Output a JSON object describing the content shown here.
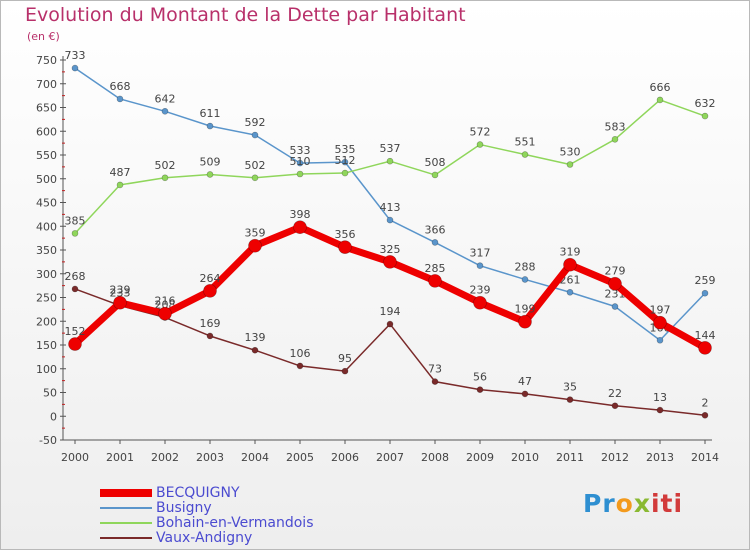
{
  "chart_data": {
    "type": "line",
    "title": "Evolution du Montant de la Dette par Habitant",
    "subtitle": "(en €)",
    "x": [
      2000,
      2001,
      2002,
      2003,
      2004,
      2005,
      2006,
      2007,
      2008,
      2009,
      2010,
      2011,
      2012,
      2013,
      2014
    ],
    "ylim": [
      -50,
      750
    ],
    "yticks": [
      -50,
      0,
      50,
      100,
      150,
      200,
      250,
      300,
      350,
      400,
      450,
      500,
      550,
      600,
      650,
      700,
      750
    ],
    "grid": false,
    "legend_position": "bottom-left",
    "series": [
      {
        "name": "Busigny",
        "color": "#5a95cb",
        "values": [
          733,
          668,
          642,
          611,
          592,
          533,
          535,
          413,
          366,
          317,
          288,
          261,
          231,
          160,
          259
        ]
      },
      {
        "name": "Bohain-en-Vermandois",
        "color": "#8fd65b",
        "values": [
          385,
          487,
          502,
          509,
          502,
          510,
          512,
          537,
          508,
          572,
          551,
          530,
          583,
          666,
          632
        ]
      },
      {
        "name": "Vaux-Andigny",
        "color": "#7a2a2a",
        "values": [
          268,
          233,
          208,
          169,
          139,
          106,
          95,
          194,
          73,
          56,
          47,
          35,
          22,
          13,
          2
        ]
      },
      {
        "name": "BECQUIGNY",
        "color": "#ee0000",
        "values": [
          152,
          239,
          216,
          264,
          359,
          398,
          356,
          325,
          285,
          239,
          199,
          319,
          279,
          197,
          144
        ]
      }
    ]
  },
  "brand": {
    "logo_parts": [
      "Pr",
      "o",
      "x",
      "iti"
    ]
  }
}
